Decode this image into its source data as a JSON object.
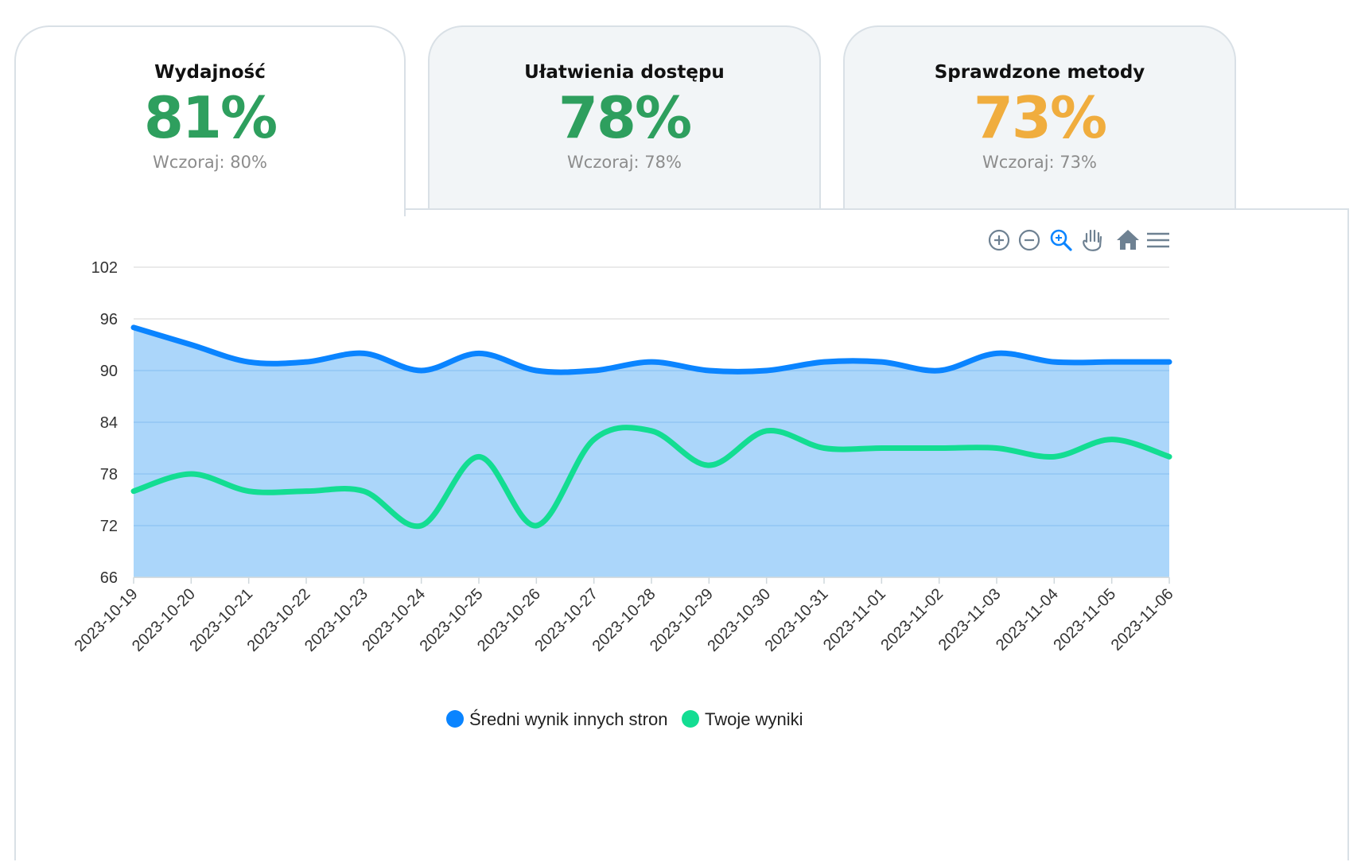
{
  "tabs": [
    {
      "title": "Wydajność",
      "score": "81%",
      "previous": "Wczoraj: 80%",
      "color": "#2e9f5e",
      "active": true
    },
    {
      "title": "Ułatwienia dostępu",
      "score": "78%",
      "previous": "Wczoraj: 78%",
      "color": "#2e9f5e",
      "active": false
    },
    {
      "title": "Sprawdzone metody",
      "score": "73%",
      "previous": "Wczoraj: 73%",
      "color": "#f0ad3e",
      "active": false
    }
  ],
  "toolbar": [
    "zoom-in-icon",
    "zoom-out-icon",
    "selection-zoom-icon",
    "pan-hand-icon",
    "home-reset-icon",
    "menu-icon"
  ],
  "chart_data": {
    "type": "area",
    "x": [
      "2023-10-19",
      "2023-10-20",
      "2023-10-21",
      "2023-10-22",
      "2023-10-23",
      "2023-10-24",
      "2023-10-25",
      "2023-10-26",
      "2023-10-27",
      "2023-10-28",
      "2023-10-29",
      "2023-10-30",
      "2023-10-31",
      "2023-11-01",
      "2023-11-02",
      "2023-11-03",
      "2023-11-04",
      "2023-11-05",
      "2023-11-06"
    ],
    "ylim": [
      66,
      102
    ],
    "yticks": [
      66,
      72,
      78,
      84,
      90,
      96,
      102
    ],
    "grid": true,
    "legend_position": "bottom-center",
    "series": [
      {
        "name": "Średni wynik innych stron",
        "color": "#0a84ff",
        "fill": "#a6d4fa",
        "values": [
          95,
          93,
          91,
          91,
          92,
          90,
          92,
          90,
          90,
          91,
          90,
          90,
          91,
          91,
          90,
          92,
          91,
          91,
          91
        ]
      },
      {
        "name": "Twoje wyniki",
        "color": "#13dd92",
        "values": [
          76,
          78,
          76,
          76,
          76,
          72,
          80,
          72,
          82,
          83,
          79,
          83,
          81,
          81,
          81,
          81,
          80,
          82,
          80
        ]
      }
    ]
  }
}
